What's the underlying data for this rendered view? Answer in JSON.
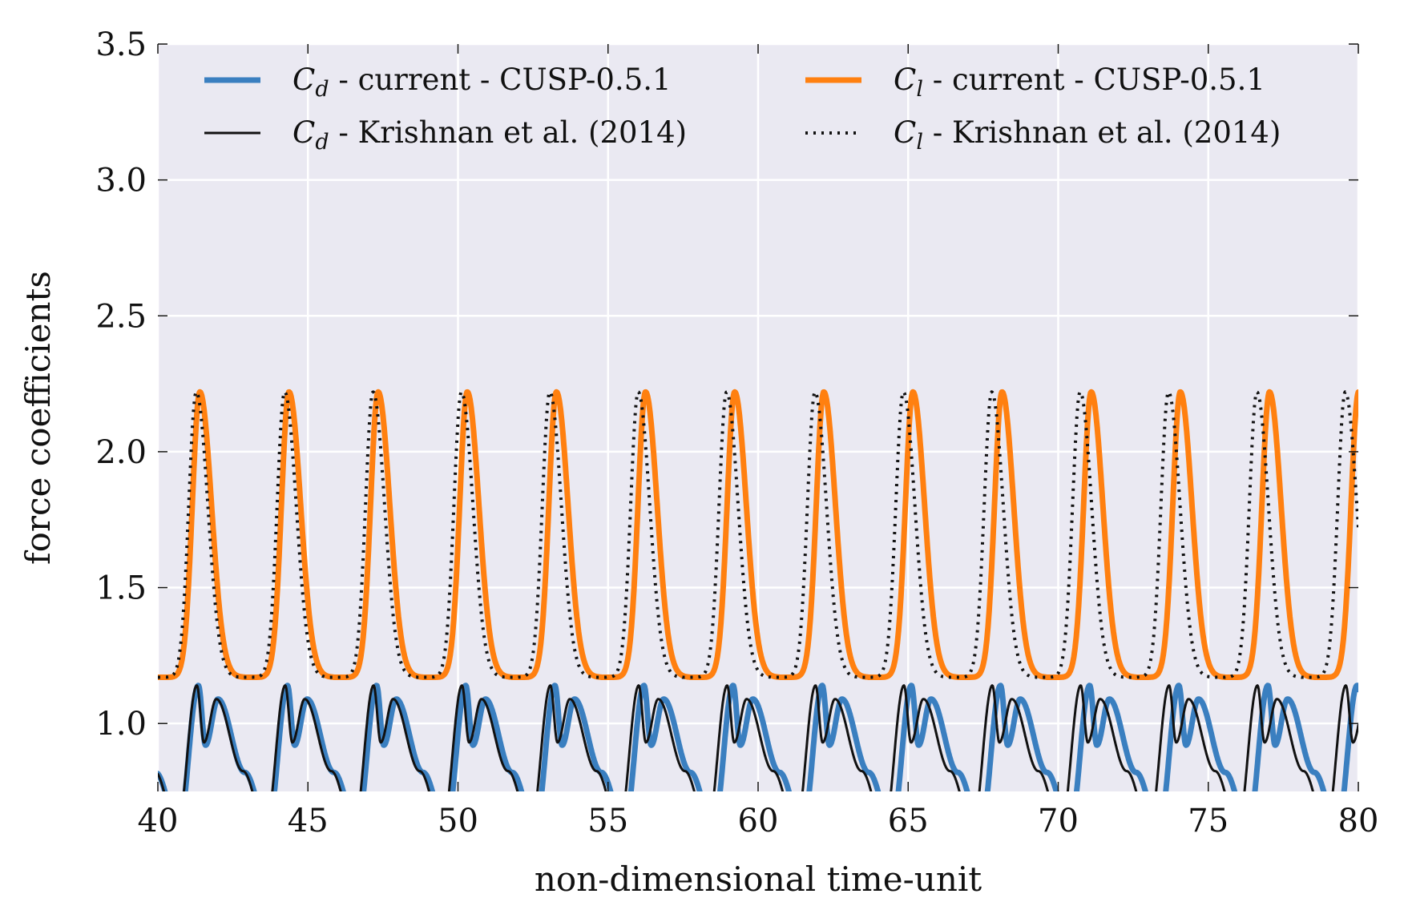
{
  "chart_data": {
    "type": "line",
    "title": "",
    "xlabel": "non-dimensional time-unit",
    "ylabel": "force coefficients",
    "xlim": [
      40,
      80
    ],
    "ylim": [
      0.75,
      3.5
    ],
    "x_ticks": [
      "40",
      "45",
      "50",
      "55",
      "60",
      "65",
      "70",
      "75",
      "80"
    ],
    "y_ticks": [
      "1.0",
      "1.5",
      "2.0",
      "2.5",
      "3.0",
      "3.5"
    ],
    "grid": true,
    "legend_location": "top",
    "colors": {
      "background": "#eae9f2",
      "grid": "#ffffff",
      "cd_current": "#3a7fc0",
      "cl_current": "#ff8010",
      "reference": "#111111"
    },
    "series": [
      {
        "name": "C_d - current - CUSP-0.5.1",
        "legend_symbol": "C",
        "legend_subscript": "d",
        "legend_suffix": " - current - CUSP-0.5.1",
        "style": "solid-thick",
        "color": "#3a7fc0",
        "kind": "Cd",
        "period": 2.97,
        "t0": 41.35,
        "min": 0.62,
        "max": 1.14,
        "secondary_max": 1.09,
        "trough_between": 0.92
      },
      {
        "name": "C_d - Krishnan et al. (2014)",
        "legend_symbol": "C",
        "legend_subscript": "d",
        "legend_suffix": " - Krishnan et al. (2014)",
        "style": "solid-thin",
        "color": "#111111",
        "kind": "Cd",
        "period": 2.945,
        "t0": 41.3,
        "min": 0.62,
        "max": 1.14,
        "secondary_max": 1.09,
        "trough_between": 0.93
      },
      {
        "name": "C_l - current - CUSP-0.5.1",
        "legend_symbol": "C",
        "legend_subscript": "l",
        "legend_suffix": " - current - CUSP-0.5.1",
        "style": "solid-thick",
        "color": "#ff8010",
        "kind": "Cl",
        "period": 2.97,
        "t0": 41.4,
        "min": 1.17,
        "max": 2.22
      },
      {
        "name": "C_l - Krishnan et al. (2014)",
        "legend_symbol": "C",
        "legend_subscript": "l",
        "legend_suffix": " - Krishnan et al. (2014)",
        "style": "dotted",
        "color": "#111111",
        "kind": "Cl",
        "period": 2.945,
        "t0": 41.28,
        "min": 1.17,
        "max": 2.22
      }
    ]
  }
}
